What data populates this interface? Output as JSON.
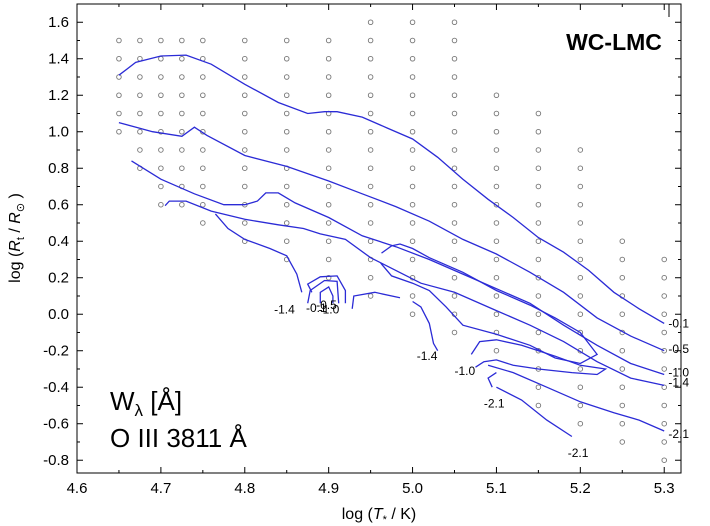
{
  "chart_data": {
    "type": "contour",
    "xlabel_prefix": "log (",
    "xlabel_var": "T",
    "xlabel_sub": "*",
    "xlabel_suffix": " / K)",
    "ylabel_prefix": "log (",
    "ylabel_var": "R",
    "ylabel_sub": "t",
    "ylabel_mid": " / ",
    "ylabel_var2": "R",
    "ylabel_sub2": "⊙",
    "ylabel_suffix": " )",
    "xlim": [
      4.6,
      5.32
    ],
    "ylim": [
      -0.87,
      1.7
    ],
    "xticks": [
      "4.6",
      "4.7",
      "4.8",
      "4.9",
      "5.0",
      "5.1",
      "5.2",
      "5.3"
    ],
    "yticks": [
      "-0.8",
      "-0.6",
      "-0.4",
      "-0.2",
      "0.0",
      "0.2",
      "0.4",
      "0.6",
      "0.8",
      "1.0",
      "1.2",
      "1.4",
      "1.6"
    ],
    "grid": false,
    "badge": "WC-LMC",
    "note_line1": "W",
    "note_line1_sub": "λ",
    "note_line1_unit": " [Å]",
    "note_line2": "O III 3811 Å",
    "model_grid_columns": [
      {
        "x": 4.65,
        "y": [
          1.0,
          1.1,
          1.2,
          1.3,
          1.4,
          1.5
        ]
      },
      {
        "x": 4.675,
        "y": [
          0.8,
          0.9,
          1.0,
          1.1,
          1.2,
          1.3,
          1.4,
          1.5
        ]
      },
      {
        "x": 4.7,
        "y": [
          0.6,
          0.7,
          0.8,
          0.9,
          1.0,
          1.1,
          1.2,
          1.3,
          1.4,
          1.5
        ]
      },
      {
        "x": 4.725,
        "y": [
          0.6,
          0.7,
          0.8,
          0.9,
          1.0,
          1.1,
          1.2,
          1.3,
          1.4,
          1.5
        ]
      },
      {
        "x": 4.75,
        "y": [
          0.5,
          0.6,
          0.7,
          0.8,
          0.9,
          1.0,
          1.1,
          1.2,
          1.3,
          1.4,
          1.5
        ]
      },
      {
        "x": 4.8,
        "y": [
          0.4,
          0.5,
          0.6,
          0.7,
          0.8,
          0.9,
          1.0,
          1.1,
          1.2,
          1.3,
          1.4,
          1.5
        ]
      },
      {
        "x": 4.85,
        "y": [
          0.3,
          0.4,
          0.5,
          0.6,
          0.7,
          0.8,
          0.9,
          1.0,
          1.1,
          1.2,
          1.3,
          1.4,
          1.5
        ]
      },
      {
        "x": 4.9,
        "y": [
          0.2,
          0.3,
          0.4,
          0.5,
          0.6,
          0.7,
          0.8,
          0.9,
          1.0,
          1.1,
          1.2,
          1.3,
          1.4,
          1.5
        ]
      },
      {
        "x": 4.95,
        "y": [
          0.1,
          0.2,
          0.3,
          0.4,
          0.5,
          0.6,
          0.7,
          0.8,
          0.9,
          1.0,
          1.1,
          1.2,
          1.3,
          1.4,
          1.5,
          1.6
        ]
      },
      {
        "x": 5.0,
        "y": [
          0.0,
          0.1,
          0.2,
          0.3,
          0.4,
          0.5,
          0.6,
          0.7,
          0.8,
          0.9,
          1.0,
          1.1,
          1.2,
          1.3,
          1.4,
          1.5,
          1.6
        ]
      },
      {
        "x": 5.05,
        "y": [
          -0.1,
          0.0,
          0.1,
          0.2,
          0.3,
          0.4,
          0.5,
          0.6,
          0.7,
          0.8,
          0.9,
          1.0,
          1.1,
          1.2,
          1.3,
          1.4,
          1.5,
          1.6
        ]
      },
      {
        "x": 5.1,
        "y": [
          -0.2,
          -0.1,
          0.0,
          0.1,
          0.2,
          0.3,
          0.4,
          0.5,
          0.6,
          0.7,
          0.8,
          0.9,
          1.0,
          1.1,
          1.2
        ]
      },
      {
        "x": 5.15,
        "y": [
          -0.5,
          -0.4,
          -0.3,
          -0.2,
          -0.1,
          0.0,
          0.1,
          0.2,
          0.3,
          0.4,
          0.5,
          0.6,
          0.7,
          0.8,
          0.9,
          1.0,
          1.1
        ]
      },
      {
        "x": 5.2,
        "y": [
          -0.6,
          -0.5,
          -0.4,
          -0.3,
          -0.2,
          -0.1,
          0.0,
          0.1,
          0.2,
          0.3,
          0.4,
          0.5,
          0.6,
          0.7,
          0.8,
          0.9
        ]
      },
      {
        "x": 5.25,
        "y": [
          -0.7,
          -0.6,
          -0.5,
          -0.4,
          -0.3,
          -0.2,
          -0.1,
          0.0,
          0.1,
          0.2,
          0.3,
          0.4
        ]
      },
      {
        "x": 5.3,
        "y": [
          -0.8,
          -0.7,
          -0.6,
          -0.5,
          -0.4,
          -0.3,
          -0.2,
          -0.1,
          0.0,
          0.1,
          0.2,
          0.3
        ]
      }
    ],
    "contours": [
      {
        "points": [
          [
            4.65,
            1.31
          ],
          [
            4.67,
            1.38
          ],
          [
            4.7,
            1.415
          ],
          [
            4.73,
            1.42
          ],
          [
            4.76,
            1.37
          ],
          [
            4.8,
            1.26
          ],
          [
            4.84,
            1.16
          ],
          [
            4.875,
            1.1
          ],
          [
            4.895,
            1.11
          ],
          [
            4.91,
            1.11
          ],
          [
            4.94,
            1.08
          ],
          [
            4.97,
            1.02
          ],
          [
            5.0,
            0.96
          ],
          [
            5.03,
            0.86
          ],
          [
            5.06,
            0.74
          ],
          [
            5.09,
            0.63
          ],
          [
            5.12,
            0.53
          ],
          [
            5.15,
            0.42
          ],
          [
            5.18,
            0.34
          ],
          [
            5.21,
            0.24
          ],
          [
            5.24,
            0.12
          ],
          [
            5.27,
            0.03
          ],
          [
            5.3,
            -0.05
          ]
        ]
      },
      {
        "points": [
          [
            4.65,
            1.05
          ],
          [
            4.69,
            1.0
          ],
          [
            4.725,
            0.975
          ],
          [
            4.74,
            1.025
          ],
          [
            4.755,
            0.98
          ],
          [
            4.8,
            0.87
          ],
          [
            4.85,
            0.81
          ],
          [
            4.9,
            0.73
          ],
          [
            4.94,
            0.66
          ],
          [
            4.98,
            0.59
          ],
          [
            5.02,
            0.51
          ],
          [
            5.06,
            0.41
          ],
          [
            5.1,
            0.33
          ],
          [
            5.14,
            0.23
          ],
          [
            5.18,
            0.12
          ],
          [
            5.22,
            -0.02
          ],
          [
            5.26,
            -0.12
          ],
          [
            5.3,
            -0.2
          ]
        ]
      },
      {
        "points": [
          [
            4.665,
            0.84
          ],
          [
            4.7,
            0.74
          ],
          [
            4.74,
            0.66
          ],
          [
            4.775,
            0.6
          ],
          [
            4.8,
            0.6
          ],
          [
            4.815,
            0.62
          ],
          [
            4.825,
            0.665
          ],
          [
            4.84,
            0.665
          ],
          [
            4.86,
            0.61
          ],
          [
            4.9,
            0.53
          ],
          [
            4.94,
            0.43
          ],
          [
            4.98,
            0.37
          ],
          [
            5.02,
            0.3
          ],
          [
            5.06,
            0.22
          ],
          [
            5.1,
            0.14
          ],
          [
            5.14,
            0.06
          ],
          [
            5.18,
            -0.06
          ],
          [
            5.22,
            -0.17
          ],
          [
            5.26,
            -0.27
          ],
          [
            5.3,
            -0.33
          ]
        ]
      },
      {
        "points": [
          [
            4.705,
            0.595
          ],
          [
            4.71,
            0.62
          ],
          [
            4.73,
            0.62
          ],
          [
            4.76,
            0.565
          ],
          [
            4.8,
            0.52
          ],
          [
            4.84,
            0.49
          ],
          [
            4.87,
            0.47
          ],
          [
            4.89,
            0.44
          ],
          [
            4.92,
            0.41
          ],
          [
            4.95,
            0.31
          ],
          [
            4.98,
            0.24
          ],
          [
            5.01,
            0.17
          ],
          [
            5.05,
            0.12
          ],
          [
            5.1,
            0.02
          ],
          [
            5.14,
            -0.06
          ],
          [
            5.18,
            -0.15
          ],
          [
            5.22,
            -0.26
          ],
          [
            5.26,
            -0.35
          ],
          [
            5.3,
            -0.39
          ]
        ]
      },
      {
        "points": [
          [
            4.765,
            0.55
          ],
          [
            4.78,
            0.47
          ],
          [
            4.8,
            0.41
          ],
          [
            4.83,
            0.36
          ],
          [
            4.85,
            0.32
          ],
          [
            4.862,
            0.22
          ],
          [
            4.868,
            0.12
          ]
        ]
      },
      {
        "points": [
          [
            4.88,
            0.12
          ],
          [
            4.875,
            0.165
          ],
          [
            4.89,
            0.205
          ],
          [
            4.91,
            0.21
          ],
          [
            4.92,
            0.13
          ],
          [
            4.92,
            0.06
          ]
        ]
      },
      {
        "points": [
          [
            4.875,
            0.06
          ],
          [
            4.878,
            0.13
          ],
          [
            4.895,
            0.185
          ],
          [
            4.91,
            0.18
          ],
          [
            4.912,
            0.06
          ]
        ]
      },
      {
        "points": [
          [
            4.89,
            0.06
          ],
          [
            4.89,
            0.12
          ],
          [
            4.9,
            0.15
          ],
          [
            4.905,
            0.1
          ],
          [
            4.905,
            0.06
          ]
        ]
      },
      {
        "points": [
          [
            4.928,
            0.03
          ],
          [
            4.93,
            0.1
          ],
          [
            4.955,
            0.12
          ],
          [
            4.985,
            0.09
          ]
        ]
      },
      {
        "points": [
          [
            4.963,
            0.335
          ],
          [
            4.975,
            0.375
          ],
          [
            4.985,
            0.385
          ],
          [
            5.0,
            0.36
          ],
          [
            5.02,
            0.31
          ],
          [
            5.06,
            0.23
          ],
          [
            5.1,
            0.13
          ],
          [
            5.14,
            0.05
          ],
          [
            5.17,
            -0.02
          ],
          [
            5.2,
            -0.1
          ],
          [
            5.22,
            -0.22
          ],
          [
            5.2,
            -0.27
          ],
          [
            5.17,
            -0.24
          ],
          [
            5.14,
            -0.17
          ],
          [
            5.1,
            -0.11
          ],
          [
            5.06,
            -0.06
          ],
          [
            5.04,
            0.04
          ],
          [
            5.02,
            0.13
          ],
          [
            5.0,
            0.17
          ],
          [
            4.975,
            0.21
          ],
          [
            4.962,
            0.28
          ]
        ]
      },
      {
        "points": [
          [
            5.0,
            0.07
          ],
          [
            5.01,
            0.04
          ],
          [
            5.02,
            -0.05
          ],
          [
            5.025,
            -0.16
          ],
          [
            5.03,
            -0.2
          ]
        ]
      },
      {
        "points": [
          [
            5.07,
            -0.22
          ],
          [
            5.08,
            -0.15
          ],
          [
            5.1,
            -0.14
          ],
          [
            5.13,
            -0.17
          ],
          [
            5.17,
            -0.23
          ],
          [
            5.2,
            -0.28
          ],
          [
            5.23,
            -0.3
          ],
          [
            5.22,
            -0.33
          ],
          [
            5.19,
            -0.32
          ],
          [
            5.15,
            -0.3
          ],
          [
            5.12,
            -0.28
          ],
          [
            5.1,
            -0.25
          ],
          [
            5.085,
            -0.26
          ],
          [
            5.075,
            -0.29
          ]
        ]
      },
      {
        "points": [
          [
            5.1,
            -0.32
          ],
          [
            5.09,
            -0.35
          ],
          [
            5.095,
            -0.4
          ]
        ]
      },
      {
        "points": [
          [
            5.09,
            -0.28
          ],
          [
            5.12,
            -0.32
          ],
          [
            5.16,
            -0.4
          ],
          [
            5.2,
            -0.48
          ],
          [
            5.24,
            -0.54
          ],
          [
            5.27,
            -0.58
          ],
          [
            5.3,
            -0.64
          ]
        ]
      },
      {
        "points": [
          [
            5.1,
            -0.4
          ],
          [
            5.13,
            -0.47
          ],
          [
            5.16,
            -0.58
          ],
          [
            5.19,
            -0.67
          ]
        ]
      }
    ],
    "annotations": [
      {
        "text": "-0.1",
        "x": 5.305,
        "y": -0.05
      },
      {
        "text": "-0.5",
        "x": 5.305,
        "y": -0.19
      },
      {
        "text": "-1.0",
        "x": 5.305,
        "y": -0.32
      },
      {
        "text": "-1.4",
        "x": 5.305,
        "y": -0.375
      },
      {
        "text": "-2.1",
        "x": 5.305,
        "y": -0.655
      },
      {
        "text": "-1.4",
        "x": 4.835,
        "y": 0.025
      },
      {
        "text": "-0.1",
        "x": 4.873,
        "y": 0.035
      },
      {
        "text": "-0.5",
        "x": 4.885,
        "y": 0.05
      },
      {
        "text": "-1.0",
        "x": 4.888,
        "y": 0.025
      },
      {
        "text": "-1.4",
        "x": 5.005,
        "y": -0.23
      },
      {
        "text": "-1.0",
        "x": 5.05,
        "y": -0.31
      },
      {
        "text": "-2.1",
        "x": 5.085,
        "y": -0.49
      },
      {
        "text": "-2.1",
        "x": 5.185,
        "y": -0.76
      }
    ]
  }
}
